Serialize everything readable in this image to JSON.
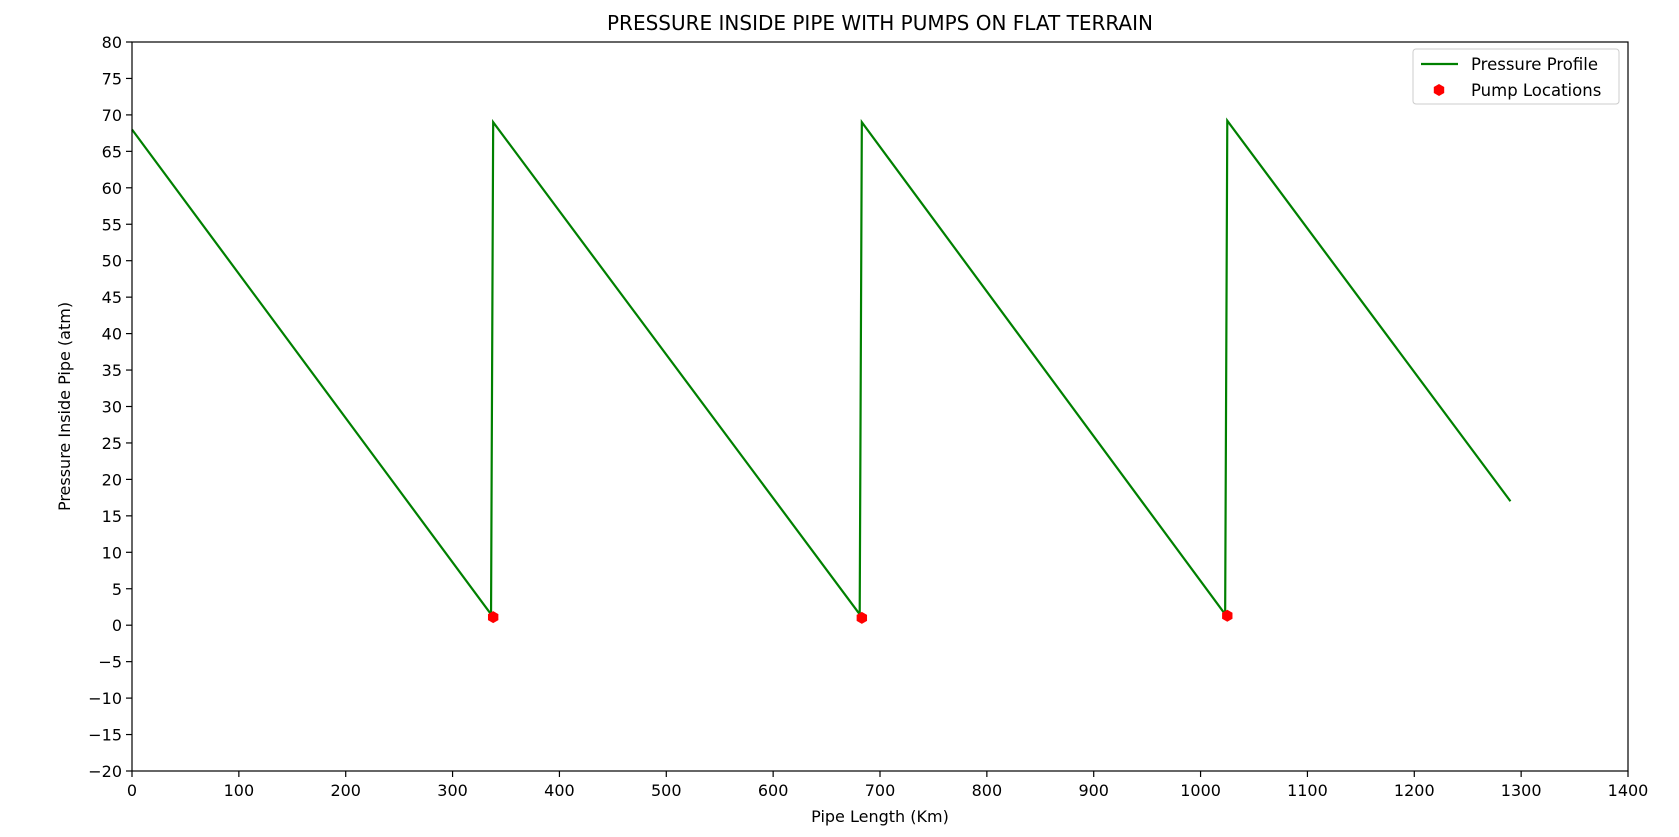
{
  "chart_data": {
    "type": "line",
    "title": "PRESSURE INSIDE PIPE WITH PUMPS ON FLAT TERRAIN",
    "xlabel": "Pipe Length (Km)",
    "ylabel": "Pressure Inside Pipe (atm)",
    "xlim": [
      0,
      1400
    ],
    "ylim": [
      -20,
      80
    ],
    "xticks": [
      0,
      100,
      200,
      300,
      400,
      500,
      600,
      700,
      800,
      900,
      1000,
      1100,
      1200,
      1300,
      1400
    ],
    "yticks": [
      -20,
      -15,
      -10,
      -5,
      0,
      5,
      10,
      15,
      20,
      25,
      30,
      35,
      40,
      45,
      50,
      55,
      60,
      65,
      70,
      75,
      80
    ],
    "grid": false,
    "legend_position": "top-right",
    "series": [
      {
        "name": "Pressure Profile",
        "kind": "line",
        "color": "#008000",
        "x": [
          0,
          336,
          338,
          681,
          683,
          1023,
          1025,
          1290
        ],
        "y": [
          68,
          1.5,
          69,
          1.5,
          69,
          1.5,
          69.2,
          17
        ]
      },
      {
        "name": "Pump Locations",
        "kind": "marker",
        "color": "#ff0000",
        "x": [
          338,
          683,
          1025
        ],
        "y": [
          1.1,
          1.0,
          1.3
        ]
      }
    ]
  }
}
